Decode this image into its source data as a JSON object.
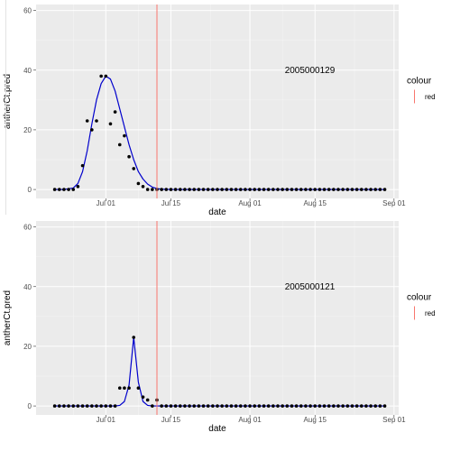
{
  "chart_data": [
    {
      "type": "line",
      "panel_label": "2005000129",
      "xlabel": "date",
      "ylabel": "antherCt.pred",
      "ylim": [
        -3,
        62
      ],
      "yticks": [
        0,
        20,
        40,
        60
      ],
      "xlim": [
        "2025-06-16",
        "2025-09-02"
      ],
      "xticks": [
        {
          "date": "2025-07-01",
          "label": "Jul 01"
        },
        {
          "date": "2025-07-15",
          "label": "Jul 15"
        },
        {
          "date": "2025-08-01",
          "label": "Aug 01"
        },
        {
          "date": "2025-08-15",
          "label": "Aug 15"
        },
        {
          "date": "2025-09-01",
          "label": "Sep 01"
        }
      ],
      "vline": {
        "date": "2025-07-12",
        "color": "#f8766d"
      },
      "points": {
        "dates": [
          "2025-06-20",
          "2025-06-21",
          "2025-06-22",
          "2025-06-23",
          "2025-06-24",
          "2025-06-25",
          "2025-06-26",
          "2025-06-27",
          "2025-06-28",
          "2025-06-29",
          "2025-06-30",
          "2025-07-01",
          "2025-07-02",
          "2025-07-03",
          "2025-07-04",
          "2025-07-05",
          "2025-07-06",
          "2025-07-07",
          "2025-07-08",
          "2025-07-09",
          "2025-07-10",
          "2025-07-11",
          "2025-07-12",
          "2025-07-13",
          "2025-07-14",
          "2025-07-15",
          "2025-07-16",
          "2025-07-17",
          "2025-07-18",
          "2025-07-19",
          "2025-07-20",
          "2025-07-21",
          "2025-07-22",
          "2025-07-23",
          "2025-07-24",
          "2025-07-25",
          "2025-07-26",
          "2025-07-27",
          "2025-07-28",
          "2025-07-29",
          "2025-07-30",
          "2025-07-31",
          "2025-08-01",
          "2025-08-02",
          "2025-08-03",
          "2025-08-04",
          "2025-08-05",
          "2025-08-06",
          "2025-08-07",
          "2025-08-08",
          "2025-08-09",
          "2025-08-10",
          "2025-08-11",
          "2025-08-12",
          "2025-08-13",
          "2025-08-14",
          "2025-08-15",
          "2025-08-16",
          "2025-08-17",
          "2025-08-18",
          "2025-08-19",
          "2025-08-20",
          "2025-08-21",
          "2025-08-22",
          "2025-08-23",
          "2025-08-24",
          "2025-08-25",
          "2025-08-26",
          "2025-08-27",
          "2025-08-28",
          "2025-08-29",
          "2025-08-30"
        ],
        "values": [
          0,
          0,
          0,
          0,
          0,
          1,
          8,
          23,
          20,
          23,
          38,
          38,
          22,
          26,
          15,
          18,
          11,
          7,
          2,
          1,
          0,
          0,
          0,
          0,
          0,
          0,
          0,
          0,
          0,
          0,
          0,
          0,
          0,
          0,
          0,
          0,
          0,
          0,
          0,
          0,
          0,
          0,
          0,
          0,
          0,
          0,
          0,
          0,
          0,
          0,
          0,
          0,
          0,
          0,
          0,
          0,
          0,
          0,
          0,
          0,
          0,
          0,
          0,
          0,
          0,
          0,
          0,
          0,
          0,
          0,
          0,
          0
        ]
      },
      "fit": {
        "color": "#0000cc",
        "dates": [
          "2025-06-20",
          "2025-06-22",
          "2025-06-24",
          "2025-06-25",
          "2025-06-26",
          "2025-06-27",
          "2025-06-28",
          "2025-06-29",
          "2025-06-30",
          "2025-07-01",
          "2025-07-02",
          "2025-07-03",
          "2025-07-04",
          "2025-07-05",
          "2025-07-06",
          "2025-07-07",
          "2025-07-08",
          "2025-07-09",
          "2025-07-10",
          "2025-07-11",
          "2025-07-12",
          "2025-07-13",
          "2025-07-15",
          "2025-07-20",
          "2025-08-01",
          "2025-08-15",
          "2025-08-30"
        ],
        "values": [
          0,
          0,
          0.5,
          2,
          6,
          13,
          22,
          30,
          35.5,
          38,
          37,
          33,
          27,
          21,
          15,
          10,
          6,
          3.5,
          1.8,
          0.8,
          0.3,
          0.1,
          0,
          0,
          0,
          0,
          0
        ]
      }
    },
    {
      "type": "line",
      "panel_label": "2005000121",
      "xlabel": "date",
      "ylabel": "antherCt.pred",
      "ylim": [
        -3,
        62
      ],
      "yticks": [
        0,
        20,
        40,
        60
      ],
      "xlim": [
        "2025-06-16",
        "2025-09-02"
      ],
      "xticks": [
        {
          "date": "2025-07-01",
          "label": "Jul 01"
        },
        {
          "date": "2025-07-15",
          "label": "Jul 15"
        },
        {
          "date": "2025-08-01",
          "label": "Aug 01"
        },
        {
          "date": "2025-08-15",
          "label": "Aug 15"
        },
        {
          "date": "2025-09-01",
          "label": "Sep 01"
        }
      ],
      "vline": {
        "date": "2025-07-12",
        "color": "#f8766d"
      },
      "points": {
        "dates": [
          "2025-06-20",
          "2025-06-21",
          "2025-06-22",
          "2025-06-23",
          "2025-06-24",
          "2025-06-25",
          "2025-06-26",
          "2025-06-27",
          "2025-06-28",
          "2025-06-29",
          "2025-06-30",
          "2025-07-01",
          "2025-07-02",
          "2025-07-03",
          "2025-07-04",
          "2025-07-05",
          "2025-07-06",
          "2025-07-07",
          "2025-07-08",
          "2025-07-09",
          "2025-07-10",
          "2025-07-11",
          "2025-07-12",
          "2025-07-13",
          "2025-07-14",
          "2025-07-15",
          "2025-07-16",
          "2025-07-17",
          "2025-07-18",
          "2025-07-19",
          "2025-07-20",
          "2025-07-21",
          "2025-07-22",
          "2025-07-23",
          "2025-07-24",
          "2025-07-25",
          "2025-07-26",
          "2025-07-27",
          "2025-07-28",
          "2025-07-29",
          "2025-07-30",
          "2025-07-31",
          "2025-08-01",
          "2025-08-02",
          "2025-08-03",
          "2025-08-04",
          "2025-08-05",
          "2025-08-06",
          "2025-08-07",
          "2025-08-08",
          "2025-08-09",
          "2025-08-10",
          "2025-08-11",
          "2025-08-12",
          "2025-08-13",
          "2025-08-14",
          "2025-08-15",
          "2025-08-16",
          "2025-08-17",
          "2025-08-18",
          "2025-08-19",
          "2025-08-20",
          "2025-08-21",
          "2025-08-22",
          "2025-08-23",
          "2025-08-24",
          "2025-08-25",
          "2025-08-26",
          "2025-08-27",
          "2025-08-28",
          "2025-08-29",
          "2025-08-30"
        ],
        "values": [
          0,
          0,
          0,
          0,
          0,
          0,
          0,
          0,
          0,
          0,
          0,
          0,
          0,
          0,
          6,
          6,
          6,
          23,
          6,
          3,
          2,
          0,
          2,
          0,
          0,
          0,
          0,
          0,
          0,
          0,
          0,
          0,
          0,
          0,
          0,
          0,
          0,
          0,
          0,
          0,
          0,
          0,
          0,
          0,
          0,
          0,
          0,
          0,
          0,
          0,
          0,
          0,
          0,
          0,
          0,
          0,
          0,
          0,
          0,
          0,
          0,
          0,
          0,
          0,
          0,
          0,
          0,
          0,
          0,
          0,
          0,
          0
        ]
      },
      "fit": {
        "color": "#0000cc",
        "dates": [
          "2025-06-20",
          "2025-07-03",
          "2025-07-04",
          "2025-07-05",
          "2025-07-06",
          "2025-07-07",
          "2025-07-08",
          "2025-07-09",
          "2025-07-10",
          "2025-07-11",
          "2025-07-15",
          "2025-08-01",
          "2025-08-30"
        ],
        "values": [
          0,
          0,
          0.2,
          1.5,
          7,
          23,
          8,
          1.5,
          0.2,
          0,
          0,
          0,
          0
        ]
      }
    }
  ],
  "legend": {
    "title": "colour",
    "items": [
      {
        "label": "red",
        "color": "#f8766d"
      }
    ]
  }
}
